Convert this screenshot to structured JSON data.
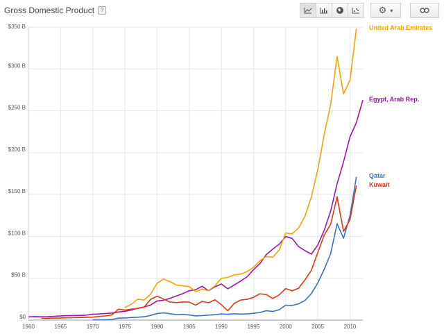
{
  "header": {
    "title": "Gross Domestic Product",
    "help": "?"
  },
  "toolbar": {
    "icons": [
      "line-chart-icon",
      "bar-chart-icon",
      "globe-icon",
      "scatter-icon"
    ],
    "settings": "gear-icon",
    "settings_caret": "▾",
    "link": "link-icon"
  },
  "colors": {
    "United Arab Emirates": "#f5a300",
    "Egypt, Arab Rep.": "#9c14a8",
    "Qatar": "#3a6fcb",
    "Kuwait": "#dc3912"
  },
  "chart_data": {
    "type": "line",
    "title": "Gross Domestic Product",
    "xlim": [
      1960,
      2012
    ],
    "ylim": [
      0,
      350
    ],
    "grid": true,
    "x_ticks": [
      "1960",
      "1965",
      "1970",
      "1975",
      "1980",
      "1985",
      "1990",
      "1995",
      "2000",
      "2005",
      "2010"
    ],
    "y_ticks": [
      "$0",
      "$50 B",
      "$100 B",
      "$150 B",
      "$200 B",
      "$250 B",
      "$300 B",
      "$350 B"
    ],
    "series": [
      {
        "name": "United Arab Emirates",
        "color": "#f5a300",
        "x": [
          1975,
          1976,
          1977,
          1978,
          1979,
          1980,
          1981,
          1982,
          1983,
          1984,
          1985,
          1986,
          1987,
          1988,
          1989,
          1990,
          1991,
          1992,
          1993,
          1994,
          1995,
          1996,
          1997,
          1998,
          1999,
          2000,
          2001,
          2002,
          2003,
          2004,
          2005,
          2006,
          2007,
          2008,
          2009,
          2010,
          2011
        ],
        "y": [
          15,
          19,
          25,
          24,
          31,
          44,
          49,
          46,
          42,
          41,
          40,
          34,
          37,
          35,
          41,
          50,
          51,
          54,
          55,
          58,
          63,
          71,
          76,
          75,
          84,
          104,
          103,
          110,
          124,
          147,
          180,
          222,
          258,
          315,
          270,
          287,
          348
        ]
      },
      {
        "name": "Egypt, Arab Rep.",
        "color": "#9c14a8",
        "x": [
          1960,
          1961,
          1962,
          1963,
          1964,
          1965,
          1966,
          1967,
          1968,
          1969,
          1970,
          1971,
          1972,
          1973,
          1974,
          1975,
          1976,
          1977,
          1978,
          1979,
          1980,
          1981,
          1982,
          1983,
          1984,
          1985,
          1986,
          1987,
          1988,
          1989,
          1990,
          1991,
          1992,
          1993,
          1994,
          1995,
          1996,
          1997,
          1998,
          1999,
          2000,
          2001,
          2002,
          2003,
          2004,
          2005,
          2006,
          2007,
          2008,
          2009,
          2010,
          2011,
          2012
        ],
        "y": [
          3.9,
          4.2,
          4.0,
          4.1,
          4.5,
          5.1,
          5.3,
          5.5,
          5.6,
          6.0,
          6.9,
          7.4,
          7.9,
          8.5,
          9.7,
          10.5,
          12.0,
          14.2,
          15.7,
          18.0,
          22.9,
          23.7,
          26.0,
          28.8,
          31.6,
          35.0,
          36.3,
          40.5,
          35.0,
          39.8,
          43.1,
          37.4,
          42.0,
          46.6,
          51.8,
          60.2,
          67.6,
          78.4,
          84.8,
          90.7,
          99.8,
          97.6,
          87.9,
          82.9,
          78.8,
          89.7,
          107.5,
          130.5,
          162.8,
          189.0,
          218.9,
          236.0,
          262.8
        ]
      },
      {
        "name": "Qatar",
        "color": "#3a6fcb",
        "x": [
          1970,
          1971,
          1972,
          1973,
          1974,
          1975,
          1976,
          1977,
          1978,
          1979,
          1980,
          1981,
          1982,
          1983,
          1984,
          1985,
          1986,
          1987,
          1988,
          1989,
          1990,
          1991,
          1992,
          1993,
          1994,
          1995,
          1996,
          1997,
          1998,
          1999,
          2000,
          2001,
          2002,
          2003,
          2004,
          2005,
          2006,
          2007,
          2008,
          2009,
          2010,
          2011
        ],
        "y": [
          0.3,
          0.4,
          0.5,
          0.8,
          2.4,
          2.5,
          3.1,
          3.5,
          4.1,
          5.6,
          7.8,
          8.7,
          7.6,
          6.5,
          6.8,
          6.2,
          5.1,
          5.4,
          6.0,
          6.5,
          7.4,
          7.0,
          7.6,
          7.2,
          7.4,
          8.1,
          9.1,
          11.3,
          10.3,
          12.4,
          17.8,
          17.5,
          19.4,
          23.5,
          31.7,
          44.5,
          60.9,
          79.7,
          115.3,
          97.8,
          125.1,
          171.0
        ]
      },
      {
        "name": "Kuwait",
        "color": "#dc3912",
        "x": [
          1962,
          1963,
          1964,
          1965,
          1966,
          1967,
          1968,
          1969,
          1970,
          1971,
          1972,
          1973,
          1974,
          1975,
          1976,
          1977,
          1978,
          1979,
          1980,
          1981,
          1982,
          1983,
          1984,
          1985,
          1986,
          1987,
          1988,
          1989,
          1990,
          1991,
          1992,
          1993,
          1994,
          1995,
          1996,
          1997,
          1998,
          1999,
          2000,
          2001,
          2002,
          2003,
          2004,
          2005,
          2006,
          2007,
          2008,
          2009,
          2010,
          2011
        ],
        "y": [
          2.1,
          2.2,
          2.4,
          2.6,
          2.8,
          2.9,
          3.1,
          3.3,
          3.6,
          4.4,
          5.0,
          6.3,
          13.0,
          12.0,
          13.1,
          13.9,
          15.5,
          24.8,
          28.6,
          25.1,
          21.6,
          20.9,
          21.7,
          21.4,
          17.9,
          22.4,
          20.7,
          24.3,
          18.4,
          11.0,
          19.9,
          24.0,
          24.8,
          27.2,
          31.5,
          30.4,
          25.9,
          30.1,
          37.7,
          34.9,
          38.1,
          48.0,
          59.4,
          80.8,
          101.6,
          114.6,
          147.4,
          105.9,
          119.9,
          160.9
        ]
      }
    ]
  }
}
